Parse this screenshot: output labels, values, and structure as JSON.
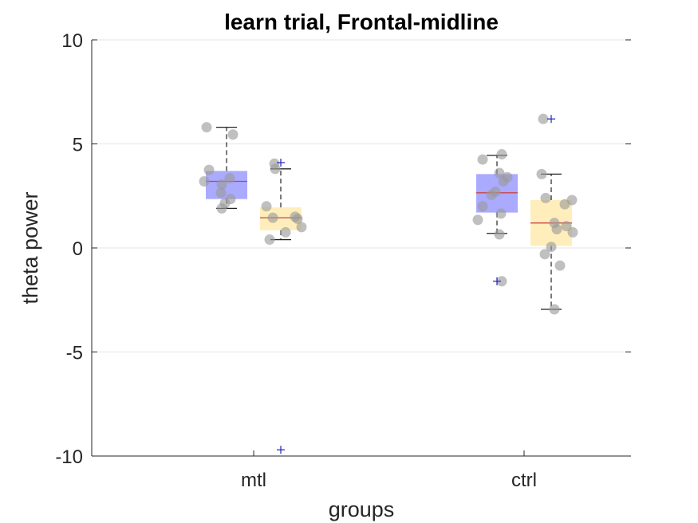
{
  "chart_data": {
    "type": "boxplot",
    "title": "learn trial, Frontal-midline",
    "xlabel": "groups",
    "ylabel": "theta power",
    "ylim": [
      -10,
      10
    ],
    "yticks": [
      -10,
      -5,
      0,
      5,
      10
    ],
    "ytick_labels": [
      "-10",
      "-5",
      "0",
      "5",
      "10"
    ],
    "grid": "horizontal",
    "categories": [
      "mtl",
      "ctrl"
    ],
    "series_colors": [
      "#aaaaff",
      "#ffeebb"
    ],
    "median_color": "#cc4444",
    "outlier_color": "#2222bb",
    "point_color": "#999999",
    "boxes": [
      {
        "group": "mtl",
        "series": 0,
        "whisker_low": 1.9,
        "q1": 2.35,
        "median": 3.2,
        "q3": 3.7,
        "whisker_high": 5.8,
        "outliers": []
      },
      {
        "group": "mtl",
        "series": 1,
        "whisker_low": 0.4,
        "q1": 0.85,
        "median": 1.45,
        "q3": 1.95,
        "whisker_high": 3.8,
        "outliers": [
          4.1,
          -9.7
        ]
      },
      {
        "group": "ctrl",
        "series": 0,
        "whisker_low": 0.7,
        "q1": 1.7,
        "median": 2.65,
        "q3": 3.55,
        "whisker_high": 4.45,
        "outliers": [
          -1.6
        ]
      },
      {
        "group": "ctrl",
        "series": 1,
        "whisker_low": -2.95,
        "q1": 0.1,
        "median": 1.2,
        "q3": 2.3,
        "whisker_high": 3.55,
        "outliers": [
          6.2
        ]
      }
    ],
    "points": [
      {
        "box": 0,
        "values": [
          5.8,
          5.45,
          3.75,
          3.35,
          3.2,
          3.05,
          2.65,
          2.35,
          2.15,
          1.9
        ],
        "jitter": [
          -0.25,
          0.08,
          -0.22,
          0.04,
          -0.28,
          -0.06,
          -0.07,
          0.05,
          -0.02,
          -0.06
        ]
      },
      {
        "box": 1,
        "values": [
          4.05,
          3.8,
          2.0,
          1.5,
          1.45,
          1.4,
          1.0,
          0.75,
          0.4
        ],
        "jitter": [
          -0.08,
          -0.07,
          -0.18,
          0.18,
          -0.1,
          0.21,
          0.26,
          0.06,
          -0.14
        ]
      },
      {
        "box": 2,
        "values": [
          4.5,
          4.25,
          3.6,
          3.4,
          3.2,
          2.7,
          2.55,
          2.0,
          1.65,
          1.35,
          0.65,
          -1.6
        ],
        "jitter": [
          0.06,
          -0.18,
          0.03,
          0.13,
          0.08,
          -0.02,
          -0.07,
          -0.18,
          0.05,
          -0.24,
          0.03,
          0.06
        ]
      },
      {
        "box": 3,
        "values": [
          6.2,
          3.55,
          2.4,
          2.3,
          2.1,
          1.2,
          1.05,
          0.9,
          0.75,
          0.05,
          -0.3,
          -0.85,
          -2.95
        ],
        "jitter": [
          -0.1,
          -0.12,
          -0.07,
          0.26,
          0.17,
          0.04,
          0.19,
          0.07,
          0.27,
          0.0,
          -0.08,
          0.11,
          0.04
        ]
      }
    ]
  }
}
